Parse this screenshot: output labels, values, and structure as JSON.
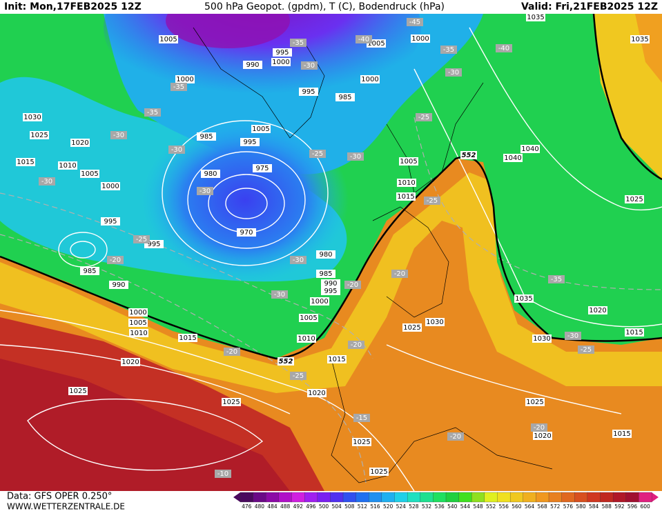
{
  "header": {
    "init": "Init: Mon,17FEB2025 12Z",
    "title": "500 hPa Geopot. (gpdm), T (C), Bodendruck (hPa)",
    "valid": "Valid: Fri,21FEB2025 12Z"
  },
  "footer": {
    "data": "Data: GFS OPER 0.250°",
    "site": "WWW.WETTERZENTRALE.DE"
  },
  "legend": {
    "values": [
      476,
      480,
      484,
      488,
      492,
      496,
      500,
      504,
      508,
      512,
      516,
      520,
      524,
      528,
      532,
      536,
      540,
      544,
      548,
      552,
      556,
      560,
      564,
      568,
      572,
      576,
      580,
      584,
      588,
      592,
      596,
      600
    ],
    "colors": [
      "#4a0a5e",
      "#6a0a86",
      "#8c0aa6",
      "#b010c8",
      "#d020e0",
      "#a020f0",
      "#7a20f0",
      "#5030f0",
      "#3050f0",
      "#2070f0",
      "#2090f0",
      "#20b0f0",
      "#20d0e8",
      "#20e0c0",
      "#20e090",
      "#20e060",
      "#20d040",
      "#40e020",
      "#90e020",
      "#e0f020",
      "#f0e020",
      "#f0c820",
      "#f0b020",
      "#f09820",
      "#e88020",
      "#e06820",
      "#d85020",
      "#d03820",
      "#c02820",
      "#b01828",
      "#a01030",
      "#e02080"
    ]
  },
  "map": {
    "pressure_labels": [
      1005,
      995,
      1000,
      990,
      1000,
      995,
      985,
      1030,
      1005,
      1025,
      1020,
      995,
      985,
      1015,
      1010,
      975,
      1005,
      980,
      1000,
      970,
      995,
      995,
      985,
      990,
      980,
      985,
      990,
      995,
      1000,
      1000,
      1005,
      1005,
      1010,
      1015,
      1010,
      1020,
      1015,
      1025,
      1025,
      1020,
      1025,
      1025,
      1025,
      1020,
      1015,
      1030,
      1025,
      1035,
      1030,
      1020,
      1015,
      1025,
      1040,
      1040,
      1035,
      1035,
      1000,
      1005,
      1000,
      1005,
      1010,
      1015
    ],
    "temperature_labels": [
      -45,
      -35,
      -40,
      -30,
      -35,
      -40,
      -30,
      -35,
      -35,
      -30,
      -25,
      -25,
      -30,
      -30,
      -30,
      -30,
      -25,
      -25,
      -20,
      -30,
      -20,
      -20,
      -30,
      -35,
      -20,
      -20,
      -25,
      -30,
      -25,
      -15,
      -20,
      -20,
      -10
    ],
    "height_labels": [
      552,
      552
    ]
  }
}
